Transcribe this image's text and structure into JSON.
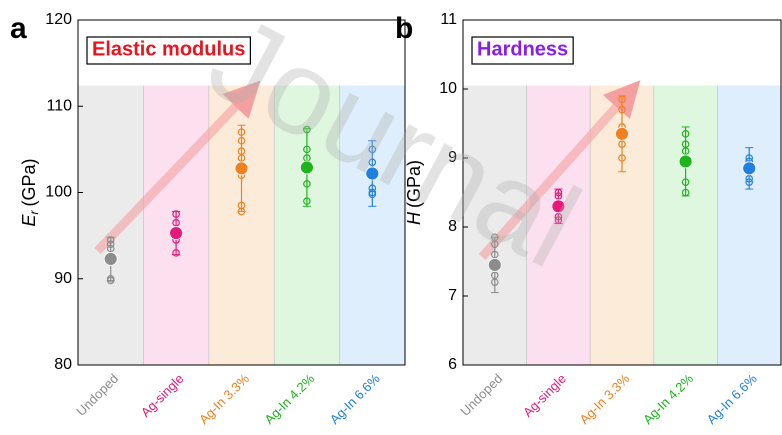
{
  "watermark": "Journal",
  "chart_data": [
    {
      "type": "dot_errorbar",
      "panel_label": "a",
      "title": "Elastic modulus",
      "title_color": "#e8141e",
      "y_label_symbol": "E",
      "y_label_subscript": "r",
      "y_label_unit": "(GPa)",
      "categories": [
        "Undoped",
        "Ag-single",
        "Ag-In 3.3%",
        "Ag-In 4.2%",
        "Ag-In 6.6%"
      ],
      "colors": [
        "#8c8c8c",
        "#e6197a",
        "#f08020",
        "#1eb41e",
        "#2080e0"
      ],
      "band_colors": [
        "#ebebeb",
        "#fde0ef",
        "#fdebd9",
        "#dff7df",
        "#dfeefc"
      ],
      "values": [
        92.3,
        95.3,
        102.8,
        102.9,
        102.2
      ],
      "errors": [
        2.5,
        2.5,
        5,
        4.5,
        3.8
      ],
      "points": [
        [
          94.5,
          94,
          93.5,
          92.5,
          90,
          89.8
        ],
        [
          97.5,
          96.5,
          95.5,
          94.5,
          93
        ],
        [
          107,
          106,
          104.8,
          104,
          102,
          98.5,
          97.8
        ],
        [
          107.3,
          105,
          104,
          101,
          99
        ],
        [
          105,
          103.5,
          100.5,
          100,
          99.8
        ]
      ],
      "ylim": [
        80,
        120
      ],
      "yticks": [
        80,
        90,
        100,
        110,
        120
      ]
    },
    {
      "type": "dot_errorbar",
      "panel_label": "b",
      "title": "Hardness",
      "title_color": "#8a1ee6",
      "y_label_symbol": "H",
      "y_label_unit": "(GPa)",
      "categories": [
        "Undoped",
        "Ag-single",
        "Ag-In 3.3%",
        "Ag-In 4.2%",
        "Ag-In 6.6%"
      ],
      "colors": [
        "#8c8c8c",
        "#e6197a",
        "#f08020",
        "#1eb41e",
        "#2080e0"
      ],
      "band_colors": [
        "#ebebeb",
        "#fde0ef",
        "#fdebd9",
        "#dff7df",
        "#dfeefc"
      ],
      "values": [
        7.45,
        8.3,
        9.35,
        8.95,
        8.85
      ],
      "errors": [
        0.4,
        0.25,
        0.55,
        0.5,
        0.3
      ],
      "points": [
        [
          7.85,
          7.75,
          7.6,
          7.45,
          7.3,
          7.2
        ],
        [
          8.5,
          8.45,
          8.3,
          8.15,
          8.1
        ],
        [
          9.85,
          9.7,
          9.45,
          9.3,
          9.2,
          9.0
        ],
        [
          9.35,
          9.2,
          9.1,
          8.65,
          8.5
        ],
        [
          9.0,
          8.95,
          8.8,
          8.7,
          8.65
        ]
      ],
      "ylim": [
        6,
        11
      ],
      "yticks": [
        6,
        7,
        8,
        9,
        10,
        11
      ]
    }
  ]
}
